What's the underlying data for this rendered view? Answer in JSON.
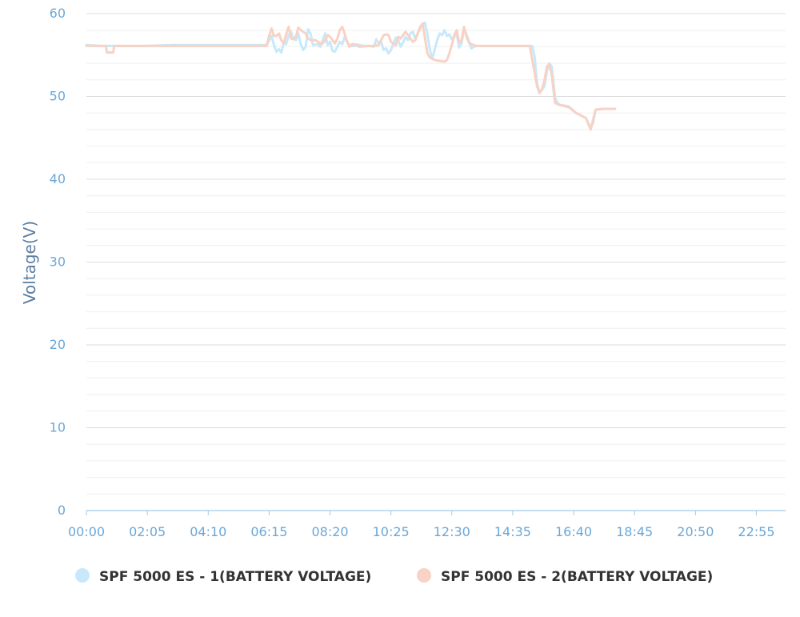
{
  "chart_data": {
    "type": "line",
    "title": "",
    "xlabel": "",
    "ylabel": "Voltage(V)",
    "ylim": [
      0,
      60
    ],
    "y_ticks": [
      0,
      10,
      20,
      30,
      40,
      50,
      60
    ],
    "x_ticks": [
      "00:00",
      "02:05",
      "04:10",
      "06:15",
      "08:20",
      "10:25",
      "12:30",
      "14:35",
      "16:40",
      "18:45",
      "20:50",
      "22:55"
    ],
    "x_range_minutes": [
      0,
      1435
    ],
    "grid": true,
    "legend_position": "bottom",
    "series": [
      {
        "name": "SPF 5000 ES - 1(BATTERY VOLTAGE)",
        "color": "#c8e9fb",
        "points": [
          [
            0,
            56.2
          ],
          [
            30,
            56.1
          ],
          [
            60,
            56.1
          ],
          [
            120,
            56.1
          ],
          [
            180,
            56.2
          ],
          [
            240,
            56.2
          ],
          [
            300,
            56.2
          ],
          [
            360,
            56.2
          ],
          [
            370,
            56.2
          ],
          [
            380,
            57.3
          ],
          [
            385,
            56.2
          ],
          [
            390,
            55.4
          ],
          [
            395,
            55.7
          ],
          [
            400,
            55.3
          ],
          [
            405,
            56.5
          ],
          [
            410,
            56.3
          ],
          [
            415,
            57.4
          ],
          [
            420,
            57.8
          ],
          [
            425,
            57.0
          ],
          [
            430,
            56.8
          ],
          [
            435,
            57.6
          ],
          [
            440,
            56.3
          ],
          [
            445,
            55.6
          ],
          [
            450,
            56.0
          ],
          [
            455,
            58.1
          ],
          [
            460,
            57.6
          ],
          [
            465,
            56.2
          ],
          [
            475,
            56.3
          ],
          [
            480,
            56.0
          ],
          [
            490,
            57.6
          ],
          [
            495,
            56.2
          ],
          [
            500,
            56.6
          ],
          [
            505,
            55.5
          ],
          [
            510,
            55.4
          ],
          [
            520,
            56.6
          ],
          [
            525,
            56.3
          ],
          [
            530,
            57.2
          ],
          [
            540,
            56.1
          ],
          [
            550,
            56.1
          ],
          [
            555,
            56.3
          ],
          [
            570,
            56.1
          ],
          [
            580,
            56.1
          ],
          [
            590,
            56.0
          ],
          [
            595,
            56.9
          ],
          [
            600,
            56.4
          ],
          [
            605,
            56.6
          ],
          [
            610,
            55.6
          ],
          [
            615,
            55.8
          ],
          [
            620,
            55.2
          ],
          [
            625,
            55.6
          ],
          [
            630,
            56.4
          ],
          [
            635,
            57.1
          ],
          [
            640,
            56.8
          ],
          [
            645,
            56.0
          ],
          [
            650,
            56.5
          ],
          [
            655,
            57.2
          ],
          [
            660,
            56.8
          ],
          [
            665,
            57.6
          ],
          [
            670,
            57.8
          ],
          [
            675,
            57.0
          ],
          [
            680,
            57.6
          ],
          [
            685,
            58.2
          ],
          [
            690,
            58.8
          ],
          [
            695,
            58.9
          ],
          [
            700,
            57.5
          ],
          [
            705,
            55.6
          ],
          [
            710,
            54.6
          ],
          [
            720,
            56.8
          ],
          [
            725,
            57.6
          ],
          [
            730,
            57.4
          ],
          [
            735,
            58.0
          ],
          [
            740,
            57.3
          ],
          [
            745,
            57.5
          ],
          [
            750,
            56.9
          ],
          [
            760,
            57.5
          ],
          [
            765,
            55.9
          ],
          [
            770,
            56.4
          ],
          [
            775,
            58.2
          ],
          [
            780,
            57.5
          ],
          [
            790,
            55.8
          ],
          [
            795,
            56.0
          ],
          [
            800,
            56.1
          ],
          [
            900,
            56.1
          ],
          [
            915,
            56.1
          ],
          [
            920,
            54.8
          ],
          [
            925,
            51.5
          ],
          [
            930,
            50.5
          ],
          [
            935,
            50.8
          ],
          [
            940,
            51.2
          ],
          [
            945,
            53.0
          ],
          [
            950,
            54.0
          ],
          [
            955,
            53.6
          ],
          [
            962,
            49.8
          ],
          [
            970,
            49.0
          ],
          [
            990,
            48.8
          ],
          [
            1005,
            48.0
          ],
          [
            1025,
            47.4
          ],
          [
            1035,
            46.2
          ],
          [
            1040,
            46.8
          ],
          [
            1045,
            48.4
          ],
          [
            1060,
            48.5
          ],
          [
            1085,
            48.5
          ]
        ]
      },
      {
        "name": "SPF 5000 ES - 2(BATTERY VOLTAGE)",
        "color": "#f8d2c4",
        "points": [
          [
            0,
            56.1
          ],
          [
            40,
            56.1
          ],
          [
            42,
            55.3
          ],
          [
            55,
            55.3
          ],
          [
            57,
            56.1
          ],
          [
            120,
            56.1
          ],
          [
            180,
            56.1
          ],
          [
            240,
            56.1
          ],
          [
            300,
            56.1
          ],
          [
            360,
            56.1
          ],
          [
            370,
            56.1
          ],
          [
            375,
            57.3
          ],
          [
            380,
            58.2
          ],
          [
            385,
            57.3
          ],
          [
            390,
            57.3
          ],
          [
            395,
            57.6
          ],
          [
            400,
            56.8
          ],
          [
            405,
            56.4
          ],
          [
            410,
            57.5
          ],
          [
            415,
            58.4
          ],
          [
            420,
            57.0
          ],
          [
            425,
            56.9
          ],
          [
            430,
            57.2
          ],
          [
            435,
            58.3
          ],
          [
            440,
            58.0
          ],
          [
            445,
            57.8
          ],
          [
            450,
            57.6
          ],
          [
            455,
            57.0
          ],
          [
            460,
            56.8
          ],
          [
            470,
            56.8
          ],
          [
            480,
            56.4
          ],
          [
            485,
            56.4
          ],
          [
            490,
            56.8
          ],
          [
            495,
            57.4
          ],
          [
            500,
            57.2
          ],
          [
            505,
            56.8
          ],
          [
            510,
            56.4
          ],
          [
            515,
            57.0
          ],
          [
            520,
            58.0
          ],
          [
            525,
            58.4
          ],
          [
            530,
            57.6
          ],
          [
            535,
            56.6
          ],
          [
            540,
            56.0
          ],
          [
            545,
            56.3
          ],
          [
            550,
            56.3
          ],
          [
            560,
            56.0
          ],
          [
            580,
            56.1
          ],
          [
            590,
            56.1
          ],
          [
            600,
            56.2
          ],
          [
            605,
            56.8
          ],
          [
            610,
            57.4
          ],
          [
            615,
            57.5
          ],
          [
            620,
            57.4
          ],
          [
            625,
            56.6
          ],
          [
            630,
            56.4
          ],
          [
            635,
            56.2
          ],
          [
            640,
            57.2
          ],
          [
            645,
            57.0
          ],
          [
            650,
            57.4
          ],
          [
            655,
            57.8
          ],
          [
            660,
            57.4
          ],
          [
            665,
            57.0
          ],
          [
            670,
            56.6
          ],
          [
            675,
            56.8
          ],
          [
            680,
            57.6
          ],
          [
            685,
            58.4
          ],
          [
            690,
            58.8
          ],
          [
            695,
            57.0
          ],
          [
            700,
            55.2
          ],
          [
            705,
            54.7
          ],
          [
            715,
            54.4
          ],
          [
            725,
            54.3
          ],
          [
            735,
            54.2
          ],
          [
            740,
            54.4
          ],
          [
            745,
            55.2
          ],
          [
            750,
            56.2
          ],
          [
            755,
            57.4
          ],
          [
            760,
            58.0
          ],
          [
            765,
            56.5
          ],
          [
            770,
            56.8
          ],
          [
            775,
            58.4
          ],
          [
            780,
            57.2
          ],
          [
            785,
            56.5
          ],
          [
            790,
            56.3
          ],
          [
            800,
            56.1
          ],
          [
            910,
            56.1
          ],
          [
            925,
            51.2
          ],
          [
            930,
            50.4
          ],
          [
            935,
            50.9
          ],
          [
            940,
            51.9
          ],
          [
            945,
            53.6
          ],
          [
            950,
            53.9
          ],
          [
            955,
            52.6
          ],
          [
            962,
            49.2
          ],
          [
            970,
            49.0
          ],
          [
            990,
            48.7
          ],
          [
            1005,
            48.0
          ],
          [
            1025,
            47.4
          ],
          [
            1035,
            46.0
          ],
          [
            1040,
            47.2
          ],
          [
            1045,
            48.4
          ],
          [
            1060,
            48.5
          ],
          [
            1085,
            48.5
          ]
        ]
      }
    ]
  }
}
